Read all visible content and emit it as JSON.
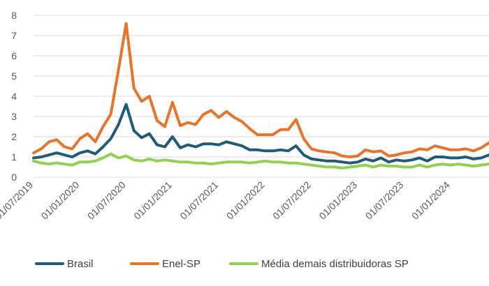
{
  "chart_data": {
    "type": "line",
    "title": "",
    "xlabel": "",
    "ylabel": "",
    "ylim": [
      0,
      8
    ],
    "y_ticks": [
      "0",
      "1",
      "2",
      "3",
      "4",
      "5",
      "6",
      "7",
      "8"
    ],
    "x_start": "2019-07",
    "x_tick_labels": [
      "01/07/2019",
      "01/01/2020",
      "01/07/2020",
      "01/01/2021",
      "01/07/2021",
      "01/01/2022",
      "01/07/2022",
      "01/01/2023",
      "01/07/2023",
      "01/01/2024"
    ],
    "grid": "horizontal",
    "legend_position": "bottom",
    "series": [
      {
        "name": "Brasil",
        "color": "#1f5a78",
        "values": [
          0.95,
          1.0,
          1.1,
          1.2,
          1.1,
          1.0,
          1.2,
          1.3,
          1.15,
          1.5,
          1.9,
          2.6,
          3.6,
          2.3,
          1.95,
          2.15,
          1.6,
          1.5,
          2.0,
          1.45,
          1.6,
          1.5,
          1.65,
          1.65,
          1.6,
          1.75,
          1.65,
          1.55,
          1.35,
          1.35,
          1.3,
          1.3,
          1.35,
          1.3,
          1.55,
          1.1,
          0.9,
          0.85,
          0.8,
          0.8,
          0.75,
          0.7,
          0.75,
          0.9,
          0.8,
          0.95,
          0.75,
          0.85,
          0.8,
          0.85,
          0.95,
          0.8,
          1.0,
          1.0,
          0.95,
          0.95,
          1.0,
          0.9,
          0.95,
          1.1
        ]
      },
      {
        "name": "Enel-SP",
        "color": "#e8742b",
        "values": [
          1.2,
          1.4,
          1.75,
          1.85,
          1.5,
          1.4,
          1.9,
          2.15,
          1.75,
          2.5,
          3.1,
          5.3,
          7.6,
          4.4,
          3.75,
          4.0,
          2.8,
          2.5,
          3.7,
          2.55,
          2.7,
          2.6,
          3.1,
          3.3,
          2.95,
          3.25,
          2.95,
          2.75,
          2.4,
          2.1,
          2.1,
          2.1,
          2.35,
          2.35,
          2.85,
          1.9,
          1.4,
          1.3,
          1.25,
          1.2,
          1.05,
          1.0,
          1.05,
          1.35,
          1.25,
          1.3,
          1.05,
          1.1,
          1.2,
          1.25,
          1.4,
          1.35,
          1.55,
          1.45,
          1.35,
          1.35,
          1.4,
          1.3,
          1.45,
          1.7
        ]
      },
      {
        "name": "Média demais distribuidoras SP",
        "color": "#92d050",
        "values": [
          0.8,
          0.7,
          0.65,
          0.7,
          0.65,
          0.6,
          0.75,
          0.75,
          0.8,
          0.95,
          1.15,
          0.95,
          1.05,
          0.85,
          0.8,
          0.9,
          0.8,
          0.85,
          0.8,
          0.75,
          0.75,
          0.7,
          0.7,
          0.65,
          0.7,
          0.75,
          0.75,
          0.75,
          0.7,
          0.75,
          0.8,
          0.75,
          0.75,
          0.7,
          0.7,
          0.65,
          0.6,
          0.55,
          0.5,
          0.5,
          0.45,
          0.5,
          0.55,
          0.6,
          0.5,
          0.6,
          0.55,
          0.55,
          0.5,
          0.5,
          0.6,
          0.5,
          0.6,
          0.65,
          0.6,
          0.65,
          0.6,
          0.55,
          0.6,
          0.65
        ]
      }
    ]
  }
}
